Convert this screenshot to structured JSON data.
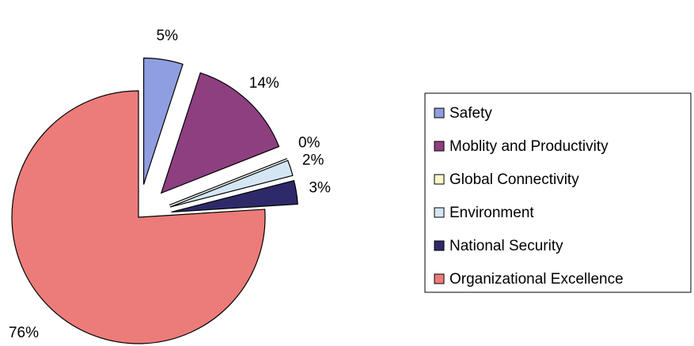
{
  "chart_data": {
    "type": "pie",
    "categories": [
      "Safety",
      "Moblity and Productivity",
      "Global Connectivity",
      "Environment",
      "National Security",
      "Organizational Excellence"
    ],
    "values": [
      5,
      14,
      0,
      2,
      3,
      76
    ],
    "value_labels": [
      "5%",
      "14%",
      "0%",
      "2%",
      "3%",
      "76%"
    ],
    "colors": [
      "#8f9ee0",
      "#8e3f80",
      "#fbf8c8",
      "#d4e6f4",
      "#2e2a6a",
      "#ec7c7a"
    ],
    "legend": "right"
  }
}
